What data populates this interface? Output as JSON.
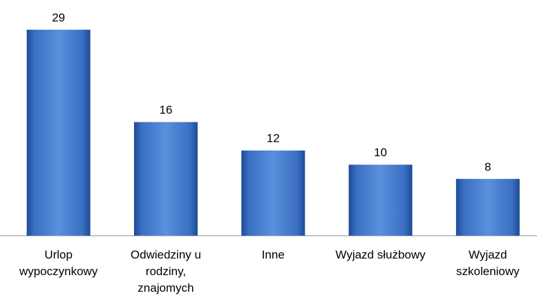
{
  "chart_data": {
    "type": "bar",
    "categories": [
      "Urlop wypoczynkowy",
      "Odwiedziny u rodziny, znajomych",
      "Inne",
      "Wyjazd służbowy",
      "Wyjazd szkoleniowy"
    ],
    "values": [
      29,
      16,
      12,
      10,
      8
    ],
    "color": "#3f74c8"
  }
}
